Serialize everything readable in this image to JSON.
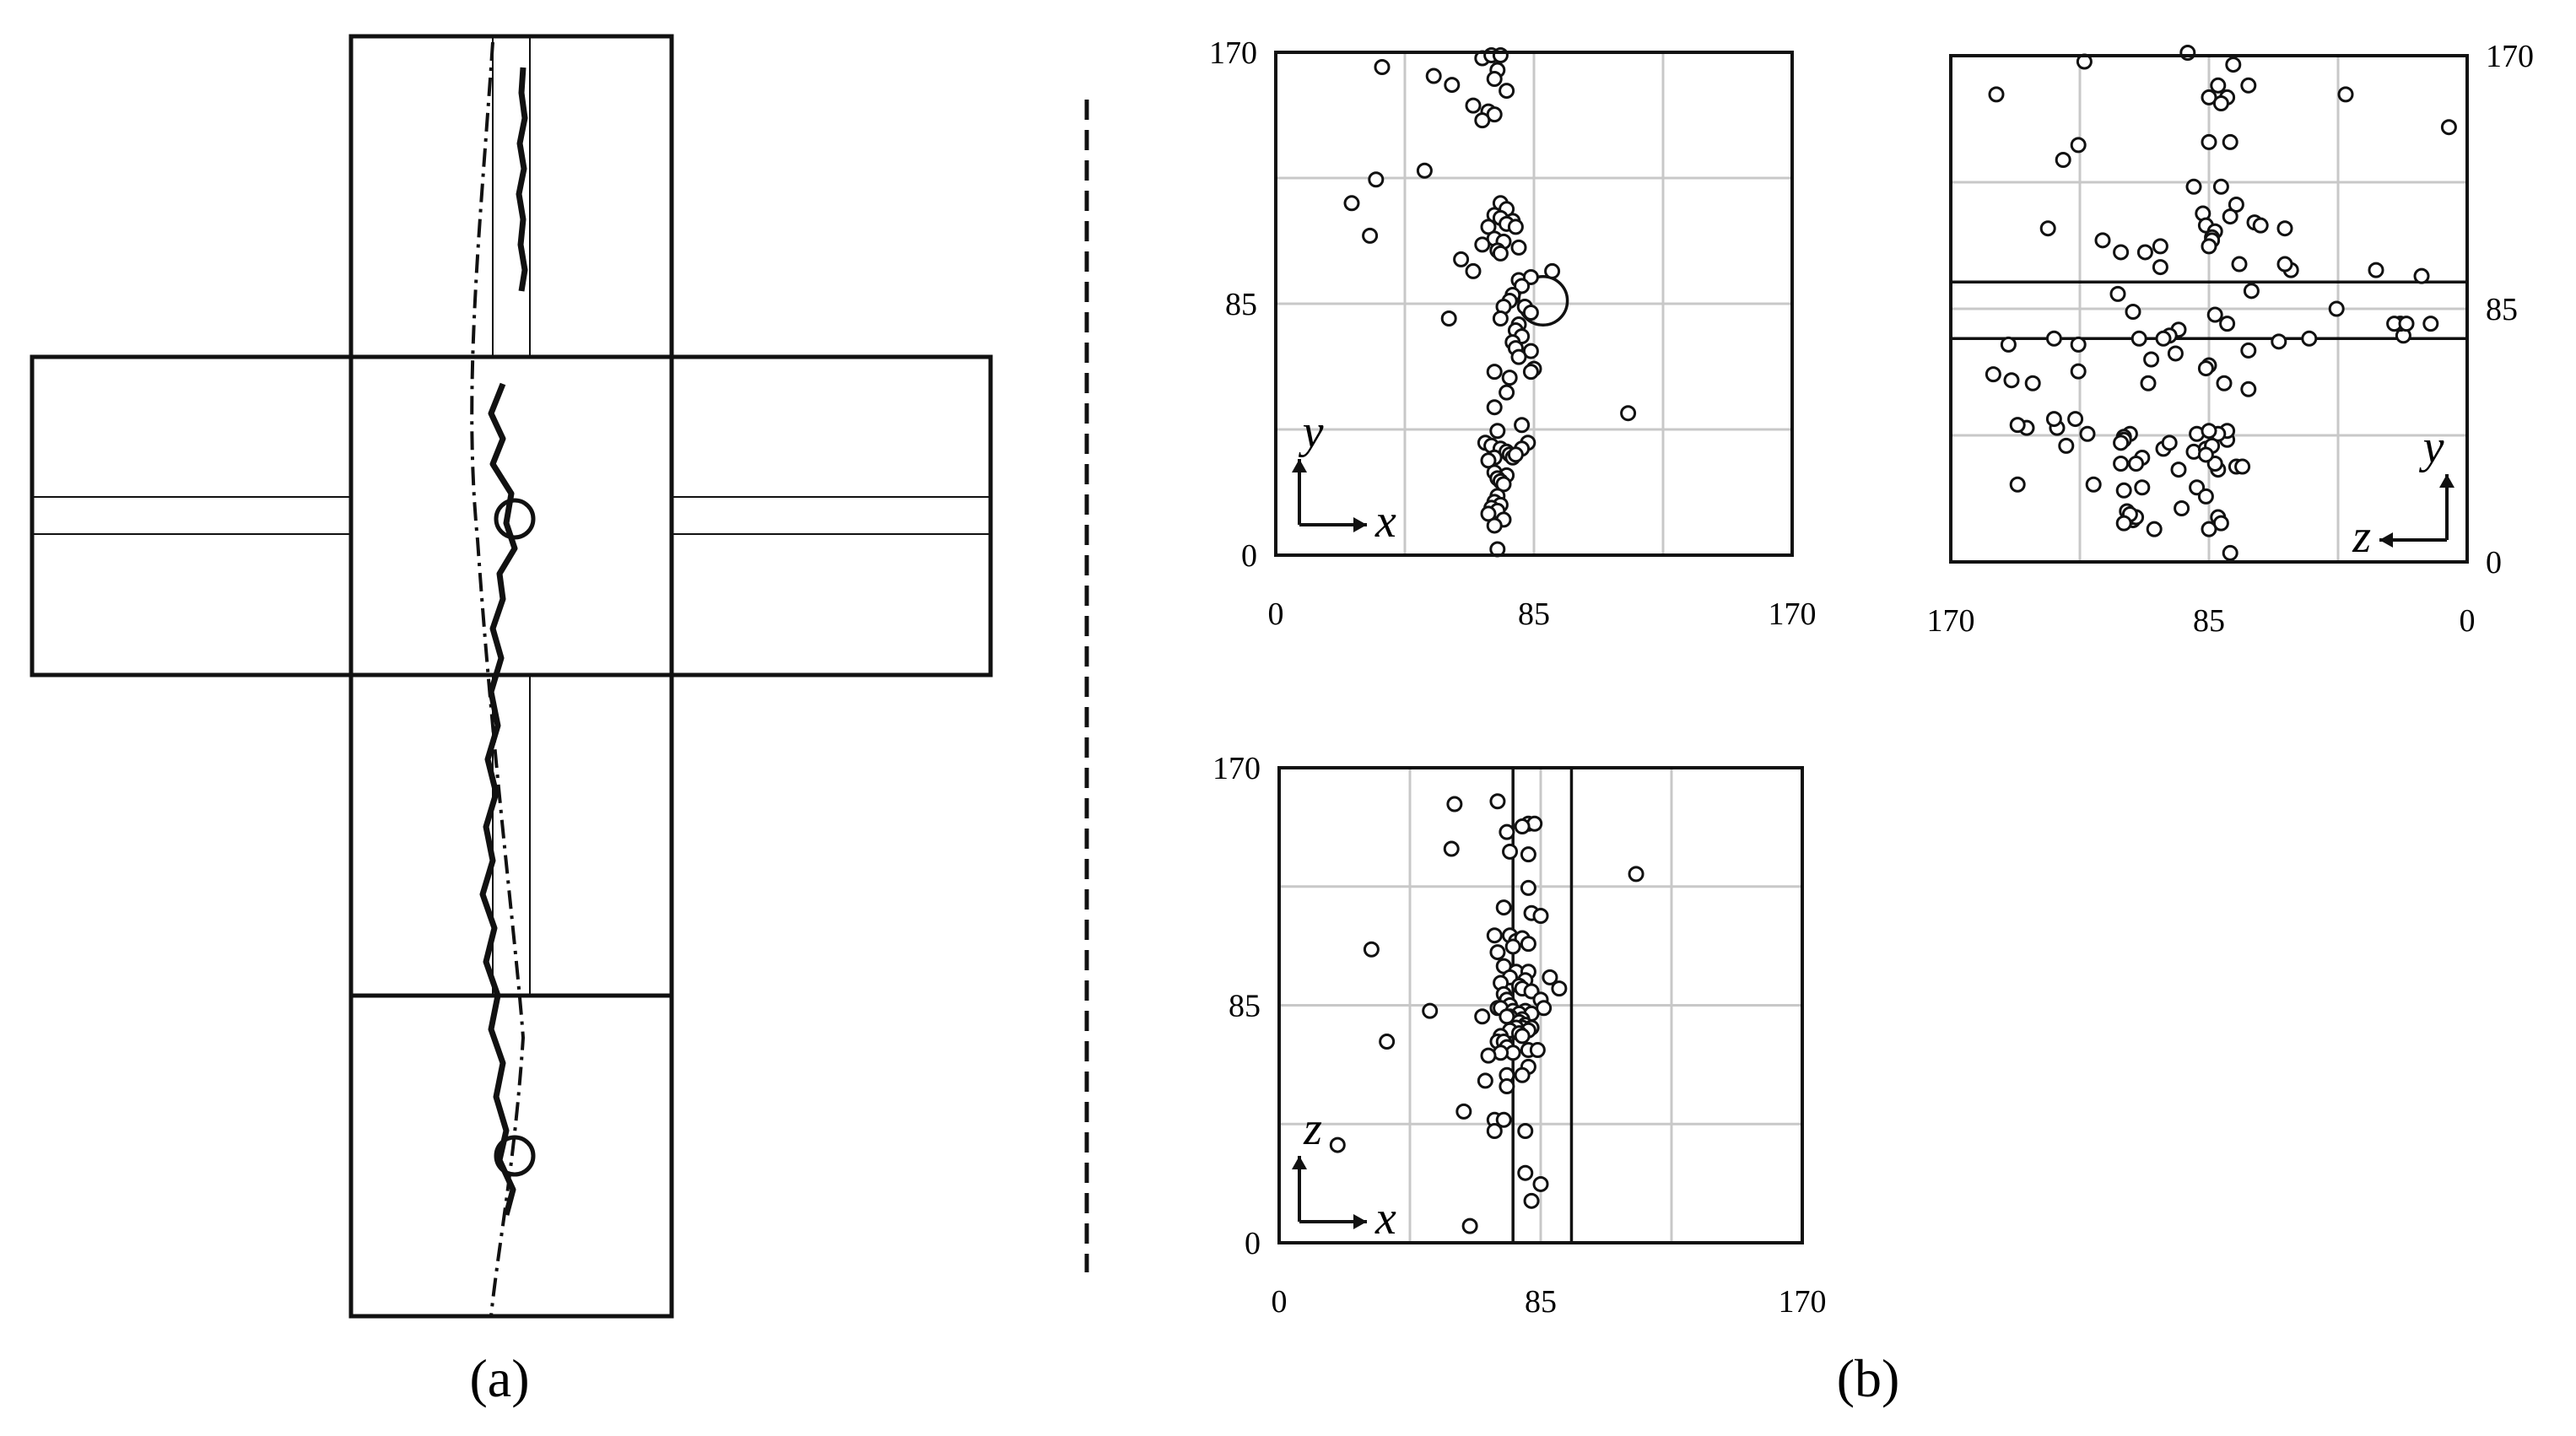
{
  "figure": {
    "labels": {
      "a": "(a)",
      "b": "(b)"
    }
  },
  "chart_data": [
    {
      "type": "scatter",
      "panel": "xy",
      "xlabel": "x",
      "ylabel": "y",
      "xlim": [
        0,
        170
      ],
      "ylim": [
        0,
        170
      ],
      "xticks": [
        "0",
        "85",
        "170"
      ],
      "yticks": [
        "0",
        "85",
        "170"
      ],
      "grid": true,
      "highlight_circle": {
        "x": 88,
        "y": 86,
        "r": 8
      },
      "points": [
        [
          35,
          165
        ],
        [
          52,
          162
        ],
        [
          58,
          159
        ],
        [
          68,
          168
        ],
        [
          71,
          169
        ],
        [
          74,
          169
        ],
        [
          73,
          164
        ],
        [
          72,
          161
        ],
        [
          76,
          157
        ],
        [
          65,
          152
        ],
        [
          70,
          150
        ],
        [
          72,
          149
        ],
        [
          68,
          147
        ],
        [
          33,
          127
        ],
        [
          25,
          119
        ],
        [
          49,
          130
        ],
        [
          74,
          119
        ],
        [
          76,
          117
        ],
        [
          72,
          115
        ],
        [
          74,
          114
        ],
        [
          78,
          113
        ],
        [
          76,
          112
        ],
        [
          70,
          111
        ],
        [
          79,
          111
        ],
        [
          72,
          107
        ],
        [
          75,
          106
        ],
        [
          68,
          105
        ],
        [
          80,
          104
        ],
        [
          73,
          103
        ],
        [
          74,
          102
        ],
        [
          31,
          108
        ],
        [
          61,
          100
        ],
        [
          65,
          96
        ],
        [
          80,
          93
        ],
        [
          91,
          96
        ],
        [
          84,
          94
        ],
        [
          81,
          91
        ],
        [
          78,
          88
        ],
        [
          77,
          86
        ],
        [
          75,
          84
        ],
        [
          82,
          84
        ],
        [
          84,
          82
        ],
        [
          74,
          80
        ],
        [
          80,
          78
        ],
        [
          79,
          76
        ],
        [
          81,
          74
        ],
        [
          78,
          72
        ],
        [
          79,
          70
        ],
        [
          84,
          69
        ],
        [
          80,
          67
        ],
        [
          85,
          63
        ],
        [
          84,
          62
        ],
        [
          57,
          80
        ],
        [
          72,
          62
        ],
        [
          77,
          60
        ],
        [
          76,
          55
        ],
        [
          72,
          50
        ],
        [
          116,
          48
        ],
        [
          81,
          44
        ],
        [
          73,
          42
        ],
        [
          69,
          38
        ],
        [
          71,
          37
        ],
        [
          74,
          36
        ],
        [
          76,
          35
        ],
        [
          77,
          34
        ],
        [
          78,
          33
        ],
        [
          72,
          33
        ],
        [
          70,
          32
        ],
        [
          83,
          38
        ],
        [
          81,
          36
        ],
        [
          79,
          34
        ],
        [
          72,
          28
        ],
        [
          76,
          27
        ],
        [
          73,
          26
        ],
        [
          74,
          25
        ],
        [
          75,
          24
        ],
        [
          73,
          20
        ],
        [
          72,
          18
        ],
        [
          74,
          17
        ],
        [
          71,
          16
        ],
        [
          73,
          15
        ],
        [
          70,
          14
        ],
        [
          75,
          12
        ],
        [
          72,
          10
        ],
        [
          73,
          2
        ]
      ]
    },
    {
      "type": "scatter",
      "panel": "zy",
      "xlabel": "z",
      "ylabel": "y",
      "xlim": [
        170,
        0
      ],
      "ylim": [
        0,
        170
      ],
      "xticks": [
        "170",
        "85",
        "0"
      ],
      "yticks": [
        "0",
        "85",
        "170"
      ],
      "grid": true,
      "reference_lines_y": [
        75,
        94
      ],
      "points": [
        [
          155,
          157
        ],
        [
          126,
          168
        ],
        [
          92,
          171
        ],
        [
          77,
          167
        ],
        [
          82,
          160
        ],
        [
          85,
          156
        ],
        [
          79,
          156
        ],
        [
          72,
          160
        ],
        [
          81,
          154
        ],
        [
          40,
          157
        ],
        [
          6,
          146
        ],
        [
          78,
          141
        ],
        [
          85,
          141
        ],
        [
          81,
          126
        ],
        [
          90,
          126
        ],
        [
          76,
          120
        ],
        [
          70,
          114
        ],
        [
          68,
          113
        ],
        [
          60,
          112
        ],
        [
          78,
          116
        ],
        [
          128,
          140
        ],
        [
          133,
          135
        ],
        [
          87,
          117
        ],
        [
          86,
          113
        ],
        [
          83,
          111
        ],
        [
          84,
          109
        ],
        [
          106,
          104
        ],
        [
          114,
          104
        ],
        [
          120,
          108
        ],
        [
          138,
          112
        ],
        [
          84,
          108
        ],
        [
          85,
          106
        ],
        [
          101,
          106
        ],
        [
          101,
          99
        ],
        [
          58,
          98
        ],
        [
          60,
          100
        ],
        [
          30,
          98
        ],
        [
          15,
          96
        ],
        [
          21,
          76
        ],
        [
          22,
          80
        ],
        [
          24,
          80
        ],
        [
          43,
          85
        ],
        [
          75,
          100
        ],
        [
          71,
          91
        ],
        [
          115,
          90
        ],
        [
          110,
          84
        ],
        [
          83,
          83
        ],
        [
          79,
          80
        ],
        [
          95,
          78
        ],
        [
          96,
          70
        ],
        [
          98,
          76
        ],
        [
          100,
          75
        ],
        [
          104,
          68
        ],
        [
          108,
          75
        ],
        [
          136,
          75
        ],
        [
          128,
          73
        ],
        [
          151,
          73
        ],
        [
          12,
          80
        ],
        [
          20,
          80
        ],
        [
          52,
          75
        ],
        [
          62,
          74
        ],
        [
          72,
          71
        ],
        [
          85,
          66
        ],
        [
          86,
          65
        ],
        [
          80,
          60
        ],
        [
          72,
          58
        ],
        [
          150,
          61
        ],
        [
          105,
          60
        ],
        [
          143,
          60
        ],
        [
          128,
          64
        ],
        [
          156,
          63
        ],
        [
          135,
          45
        ],
        [
          129,
          48
        ],
        [
          145,
          45
        ],
        [
          136,
          48
        ],
        [
          148,
          46
        ],
        [
          125,
          43
        ],
        [
          132,
          39
        ],
        [
          90,
          37
        ],
        [
          79,
          41
        ],
        [
          79,
          44
        ],
        [
          82,
          43
        ],
        [
          89,
          43
        ],
        [
          100,
          38
        ],
        [
          98,
          40
        ],
        [
          111,
          43
        ],
        [
          113,
          42
        ],
        [
          113,
          41
        ],
        [
          114,
          40
        ],
        [
          114,
          33
        ],
        [
          107,
          35
        ],
        [
          109,
          33
        ],
        [
          95,
          31
        ],
        [
          82,
          31
        ],
        [
          83,
          33
        ],
        [
          76,
          32
        ],
        [
          74,
          32
        ],
        [
          86,
          38
        ],
        [
          84,
          39
        ],
        [
          86,
          36
        ],
        [
          85,
          44
        ],
        [
          89,
          25
        ],
        [
          107,
          25
        ],
        [
          113,
          24
        ],
        [
          123,
          26
        ],
        [
          148,
          26
        ],
        [
          86,
          22
        ],
        [
          94,
          18
        ],
        [
          110,
          14
        ],
        [
          111,
          15
        ],
        [
          112,
          17
        ],
        [
          109,
          15
        ],
        [
          111,
          16
        ],
        [
          113,
          13
        ],
        [
          82,
          15
        ],
        [
          81,
          13
        ],
        [
          85,
          11
        ],
        [
          103,
          11
        ],
        [
          78,
          3
        ]
      ]
    },
    {
      "type": "scatter",
      "panel": "xz",
      "xlabel": "x",
      "ylabel": "z",
      "xlim": [
        0,
        170
      ],
      "ylim": [
        0,
        170
      ],
      "xticks": [
        "0",
        "85",
        "170"
      ],
      "yticks": [
        "0",
        "85",
        "170"
      ],
      "grid": true,
      "reference_lines_x": [
        76,
        95
      ],
      "points": [
        [
          57,
          157
        ],
        [
          71,
          158
        ],
        [
          81,
          150
        ],
        [
          83,
          150
        ],
        [
          79,
          149
        ],
        [
          74,
          147
        ],
        [
          56,
          141
        ],
        [
          75,
          140
        ],
        [
          81,
          139
        ],
        [
          116,
          132
        ],
        [
          81,
          127
        ],
        [
          73,
          120
        ],
        [
          82,
          118
        ],
        [
          85,
          117
        ],
        [
          70,
          110
        ],
        [
          75,
          110
        ],
        [
          77,
          108
        ],
        [
          79,
          109
        ],
        [
          76,
          106
        ],
        [
          81,
          107
        ],
        [
          71,
          104
        ],
        [
          30,
          105
        ],
        [
          73,
          99
        ],
        [
          77,
          97
        ],
        [
          81,
          97
        ],
        [
          75,
          95
        ],
        [
          88,
          95
        ],
        [
          80,
          94
        ],
        [
          72,
          93
        ],
        [
          78,
          92
        ],
        [
          79,
          91
        ],
        [
          82,
          90
        ],
        [
          73,
          89
        ],
        [
          91,
          91
        ],
        [
          74,
          87
        ],
        [
          85,
          87
        ],
        [
          75,
          85
        ],
        [
          86,
          84
        ],
        [
          71,
          84
        ],
        [
          72,
          84
        ],
        [
          76,
          83
        ],
        [
          49,
          83
        ],
        [
          80,
          83
        ],
        [
          78,
          82
        ],
        [
          82,
          82
        ],
        [
          75,
          81
        ],
        [
          74,
          81
        ],
        [
          79,
          80
        ],
        [
          66,
          81
        ],
        [
          78,
          79
        ],
        [
          80,
          78
        ],
        [
          79,
          77
        ],
        [
          77,
          77
        ],
        [
          82,
          77
        ],
        [
          81,
          76
        ],
        [
          75,
          76
        ],
        [
          78,
          75
        ],
        [
          79,
          74
        ],
        [
          72,
          74
        ],
        [
          71,
          72
        ],
        [
          35,
          72
        ],
        [
          73,
          72
        ],
        [
          74,
          70
        ],
        [
          81,
          69
        ],
        [
          76,
          68
        ],
        [
          84,
          69
        ],
        [
          72,
          68
        ],
        [
          68,
          67
        ],
        [
          81,
          63
        ],
        [
          74,
          60
        ],
        [
          79,
          60
        ],
        [
          67,
          58
        ],
        [
          74,
          56
        ],
        [
          60,
          47
        ],
        [
          70,
          44
        ],
        [
          73,
          44
        ],
        [
          70,
          40
        ],
        [
          80,
          40
        ],
        [
          19,
          35
        ],
        [
          80,
          25
        ],
        [
          85,
          21
        ],
        [
          82,
          15
        ],
        [
          62,
          6
        ]
      ]
    }
  ]
}
